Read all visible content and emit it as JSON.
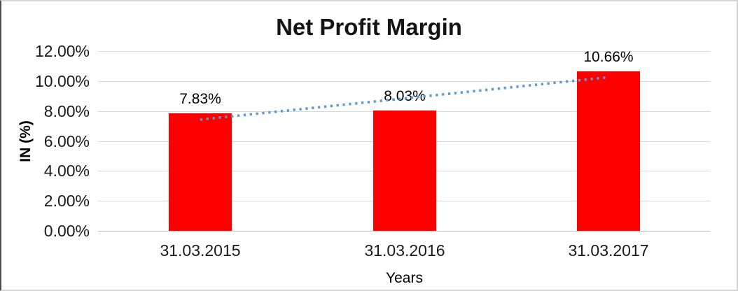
{
  "chart_data": {
    "type": "bar",
    "title": "Net Profit Margin",
    "xlabel": "Years",
    "ylabel": "IN (%)",
    "categories": [
      "31.03.2015",
      "31.03.2016",
      "31.03.2017"
    ],
    "values": [
      7.83,
      8.03,
      10.66
    ],
    "data_labels": [
      "7.83%",
      "8.03%",
      "10.66%"
    ],
    "unit": "percent",
    "ylim": [
      0,
      12
    ],
    "ytick_values": [
      0,
      2,
      4,
      6,
      8,
      10,
      12
    ],
    "ytick_labels": [
      "0.00%",
      "2.00%",
      "4.00%",
      "6.00%",
      "8.00%",
      "10.00%",
      "12.00%"
    ],
    "grid": true,
    "legend": "none",
    "bar_color": "#ff0000",
    "gridline_color": "#d9d9d9",
    "trendline": {
      "type": "linear",
      "style": "dotted",
      "color": "#5b9bd5",
      "start_value": 7.43,
      "end_value": 10.26
    }
  }
}
